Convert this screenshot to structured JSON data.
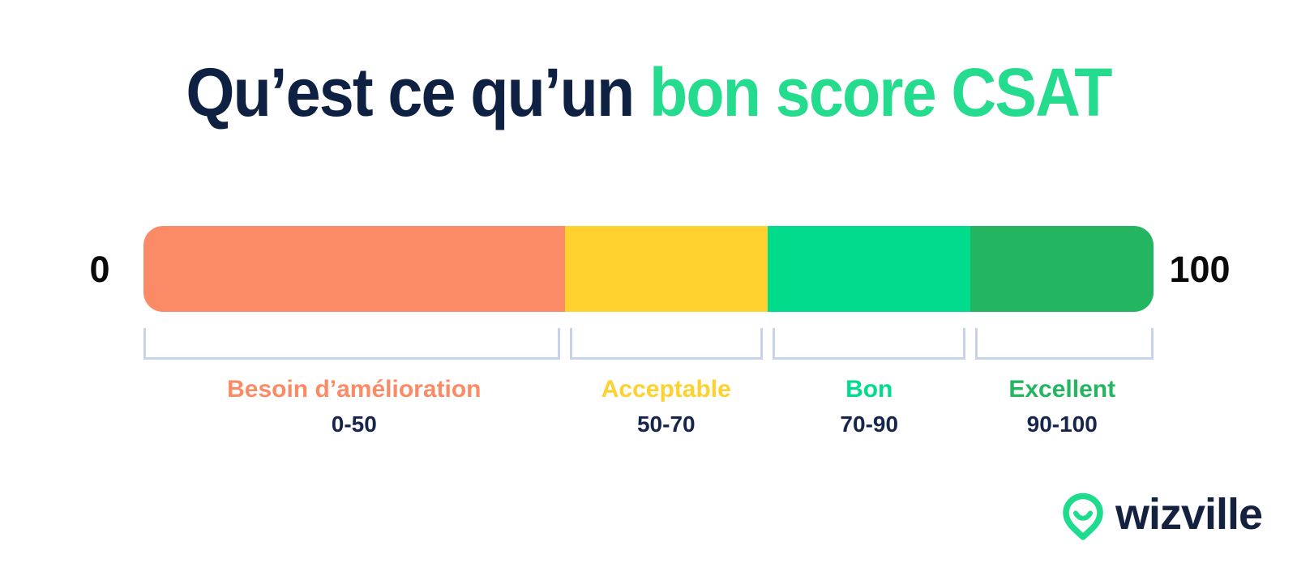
{
  "title": {
    "part_dark": "Qu’est ce qu’un ",
    "part_accent": "bon score CSAT",
    "dark_color": "#0e2143",
    "accent_color": "#25dc8e"
  },
  "scale": {
    "min_label": "0",
    "max_label": "100",
    "bracket_color": "#c8d3eb",
    "range_text_color": "#16254c",
    "segments": [
      {
        "name": "Besoin d’amélioration",
        "range": "0-50",
        "color": "#fb8b66",
        "width_pct": 41.7
      },
      {
        "name": "Acceptable",
        "range": "50-70",
        "color": "#ffd12e",
        "width_pct": 20.1
      },
      {
        "name": "Bon",
        "range": "70-90",
        "color": "#00db8c",
        "width_pct": 20.1
      },
      {
        "name": "Excellent",
        "range": "90-100",
        "color": "#24b560",
        "width_pct": 18.1
      }
    ]
  },
  "logo": {
    "text": "wizville",
    "icon": "wizville-pin-icon",
    "icon_color": "#1edc8e",
    "text_color": "#15223f"
  }
}
